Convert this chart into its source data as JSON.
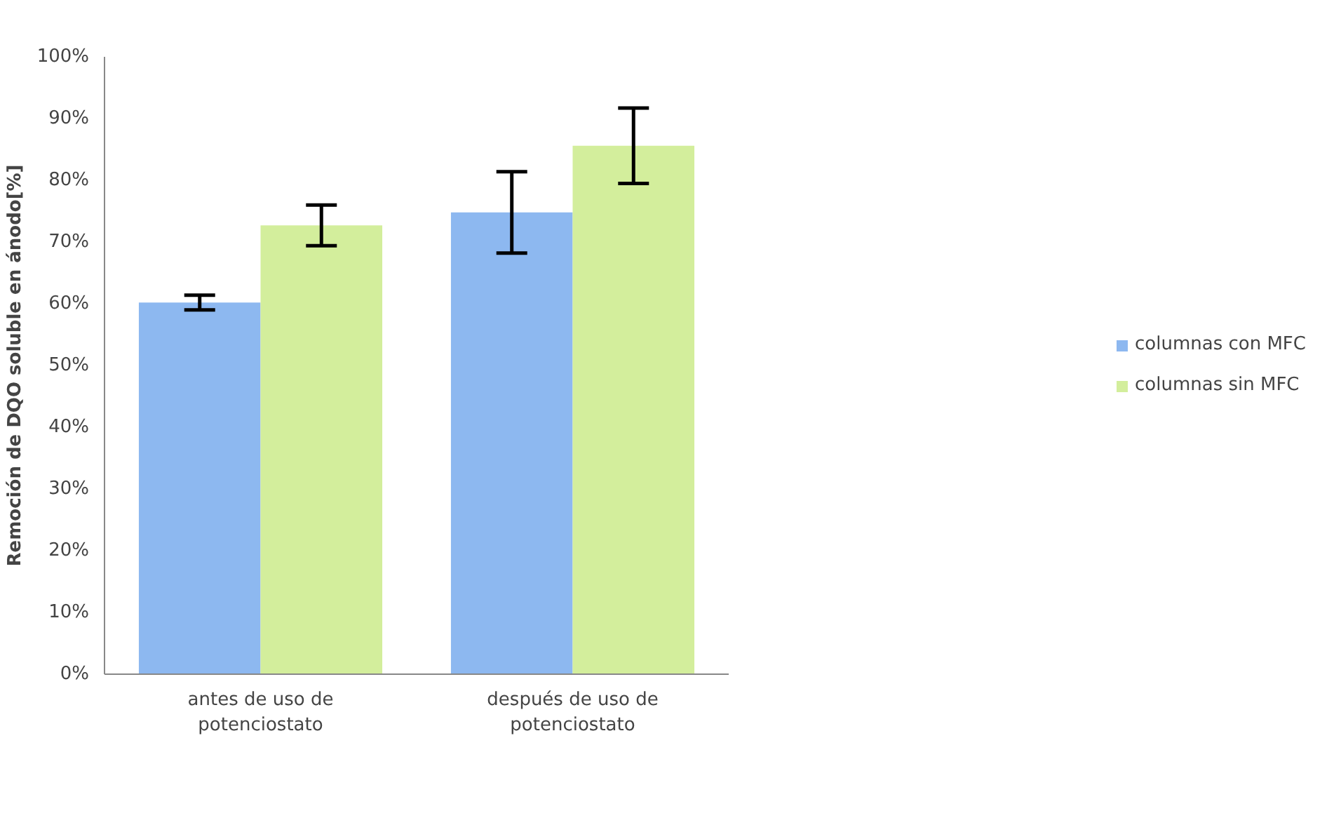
{
  "chart_data": {
    "type": "bar",
    "ylabel": "Remoción de DQO soluble en ánodo[%]",
    "categories": [
      "antes de uso de\npotenciostato",
      "después de uso de\npotenciostato"
    ],
    "series": [
      {
        "name": "columnas con MFC",
        "color": "#8db8f0",
        "values": [
          60.2,
          74.8
        ],
        "errors": [
          1.2,
          6.6
        ]
      },
      {
        "name": "columnas sin MFC",
        "color": "#d3ee9c",
        "values": [
          72.7,
          85.6
        ],
        "errors": [
          3.3,
          6.1
        ]
      }
    ],
    "ylim": [
      0,
      100
    ],
    "yticks": [
      {
        "value": 0,
        "label": "0%"
      },
      {
        "value": 10,
        "label": "10%"
      },
      {
        "value": 20,
        "label": "20%"
      },
      {
        "value": 30,
        "label": "30%"
      },
      {
        "value": 40,
        "label": "40%"
      },
      {
        "value": 50,
        "label": "50%"
      },
      {
        "value": 60,
        "label": "60%"
      },
      {
        "value": 70,
        "label": "70%"
      },
      {
        "value": 80,
        "label": "80%"
      },
      {
        "value": 90,
        "label": "90%"
      },
      {
        "value": 100,
        "label": "100%"
      }
    ],
    "grid": false,
    "legend": "right"
  }
}
